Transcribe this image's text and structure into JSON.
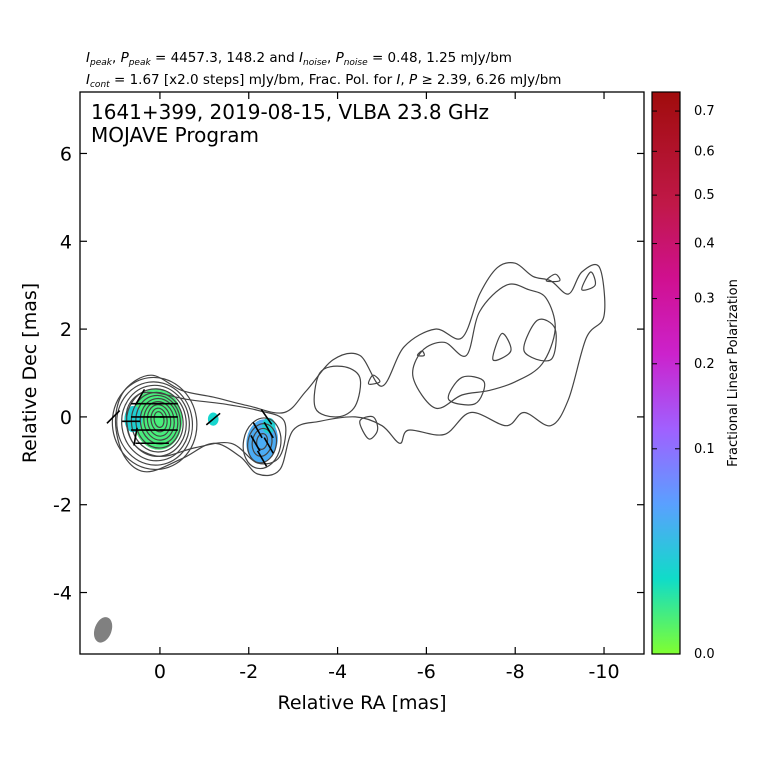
{
  "header": {
    "line1": {
      "i_peak_sym": "I",
      "i_peak_sub": "peak",
      "p_peak_sym": "P",
      "p_peak_sub": "peak",
      "peak_values": " = 4457.3, 148.2 and ",
      "i_noise_sym": "I",
      "i_noise_sub": "noise",
      "p_noise_sym": "P",
      "p_noise_sub": "noise",
      "noise_values": " = 0.48, 1.25 mJy/bm"
    },
    "line2": {
      "i_cont_sym": "I",
      "i_cont_sub": "cont",
      "cont_text": " = 1.67 [x2.0 steps] mJy/bm, Frac. Pol. for ",
      "i_sym": "I",
      "p_sym": "P",
      "threshold_text": " ≥  2.39, 6.26 mJy/bm"
    }
  },
  "chart_data": {
    "type": "contour",
    "title_line1": "1641+399, 2019-08-15, VLBA 23.8 GHz",
    "title_line2": "MOJAVE Program",
    "xlabel": "Relative RA [mas]",
    "ylabel": "Relative Dec [mas]",
    "xlim": [
      1.8,
      -10.9
    ],
    "ylim": [
      -5.4,
      7.4
    ],
    "x_ticks": [
      0,
      -2,
      -4,
      -6,
      -8,
      -10
    ],
    "x_tick_labels": [
      "0",
      "-2",
      "-4",
      "-6",
      "-8",
      "-10"
    ],
    "y_ticks": [
      -4,
      -2,
      0,
      2,
      4,
      6
    ],
    "y_tick_labels": [
      "-4",
      "-2",
      "0",
      "2",
      "4",
      "6"
    ],
    "contour_colour": "#444444",
    "core_contours": [
      {
        "cx": 0.12,
        "cy": -0.15,
        "rx": 0.95,
        "ry": 1.05,
        "angle": 8
      },
      {
        "cx": 0.12,
        "cy": -0.15,
        "rx": 0.85,
        "ry": 0.95,
        "angle": 8
      },
      {
        "cx": 0.1,
        "cy": -0.14,
        "rx": 0.76,
        "ry": 0.86,
        "angle": 8
      },
      {
        "cx": 0.08,
        "cy": -0.13,
        "rx": 0.67,
        "ry": 0.77,
        "angle": 8
      },
      {
        "cx": 0.06,
        "cy": -0.12,
        "rx": 0.58,
        "ry": 0.68,
        "angle": 8
      },
      {
        "cx": 0.04,
        "cy": -0.11,
        "rx": 0.5,
        "ry": 0.6,
        "angle": 8
      },
      {
        "cx": 0.02,
        "cy": -0.1,
        "rx": 0.42,
        "ry": 0.52,
        "angle": 8
      },
      {
        "cx": 0.02,
        "cy": -0.09,
        "rx": 0.34,
        "ry": 0.44,
        "angle": 8
      },
      {
        "cx": 0.02,
        "cy": -0.08,
        "rx": 0.26,
        "ry": 0.36,
        "angle": 8
      },
      {
        "cx": 0.02,
        "cy": -0.07,
        "rx": 0.18,
        "ry": 0.27,
        "angle": 8
      },
      {
        "cx": 0.02,
        "cy": -0.06,
        "rx": 0.11,
        "ry": 0.18,
        "angle": 8
      }
    ],
    "knot_contours": [
      {
        "cx": -2.3,
        "cy": -0.6,
        "rx": 0.42,
        "ry": 0.58,
        "angle": -10
      },
      {
        "cx": -2.3,
        "cy": -0.6,
        "rx": 0.32,
        "ry": 0.45,
        "angle": -10
      },
      {
        "cx": -2.3,
        "cy": -0.58,
        "rx": 0.22,
        "ry": 0.32,
        "angle": -10
      },
      {
        "cx": -2.3,
        "cy": -0.56,
        "rx": 0.12,
        "ry": 0.18,
        "angle": -10
      }
    ],
    "jet_contours": [
      [
        [
          0.2,
          0.95
        ],
        [
          -0.5,
          0.6
        ],
        [
          -1.2,
          0.45
        ],
        [
          -2.0,
          0.25
        ],
        [
          -2.8,
          0.1
        ],
        [
          -3.3,
          0.6
        ],
        [
          -3.9,
          1.3
        ],
        [
          -4.5,
          1.4
        ],
        [
          -5.0,
          0.7
        ],
        [
          -5.5,
          1.6
        ],
        [
          -6.2,
          2.0
        ],
        [
          -6.8,
          1.8
        ],
        [
          -7.2,
          2.8
        ],
        [
          -7.6,
          3.4
        ],
        [
          -8.0,
          3.5
        ],
        [
          -8.4,
          3.2
        ],
        [
          -8.8,
          3.1
        ],
        [
          -9.2,
          2.8
        ],
        [
          -9.5,
          3.3
        ],
        [
          -9.9,
          3.4
        ],
        [
          -10.0,
          2.3
        ],
        [
          -9.6,
          1.8
        ],
        [
          -9.2,
          0.4
        ],
        [
          -8.8,
          -0.2
        ],
        [
          -8.2,
          0.1
        ],
        [
          -7.8,
          -0.2
        ],
        [
          -7.0,
          0.1
        ],
        [
          -6.4,
          -0.4
        ],
        [
          -5.6,
          -0.3
        ],
        [
          -5.4,
          -0.6
        ],
        [
          -5.0,
          -0.2
        ],
        [
          -4.4,
          0.0
        ],
        [
          -3.6,
          -0.1
        ],
        [
          -3.0,
          -0.3
        ],
        [
          -2.7,
          -1.2
        ],
        [
          -2.2,
          -1.3
        ],
        [
          -1.8,
          -0.9
        ],
        [
          -1.2,
          -0.6
        ],
        [
          -0.5,
          -0.95
        ],
        [
          0.3,
          -1.25
        ],
        [
          0.8,
          -0.9
        ],
        [
          1.0,
          -0.1
        ],
        [
          0.8,
          0.6
        ]
      ],
      [
        [
          0.1,
          0.55
        ],
        [
          -0.6,
          0.4
        ],
        [
          -1.4,
          0.3
        ],
        [
          -2.2,
          0.15
        ],
        [
          -2.8,
          -0.1
        ],
        [
          -2.7,
          -0.9
        ],
        [
          -2.2,
          -1.05
        ],
        [
          -1.6,
          -0.6
        ],
        [
          -0.8,
          -0.7
        ],
        [
          0.0,
          -0.9
        ],
        [
          0.6,
          -0.6
        ],
        [
          0.75,
          0.1
        ],
        [
          0.5,
          0.5
        ]
      ],
      [
        [
          -3.5,
          0.2
        ],
        [
          -3.6,
          1.0
        ],
        [
          -4.1,
          1.15
        ],
        [
          -4.5,
          0.9
        ],
        [
          -4.4,
          0.25
        ],
        [
          -4.0,
          0.0
        ]
      ],
      [
        [
          -5.7,
          0.9
        ],
        [
          -5.9,
          1.5
        ],
        [
          -6.4,
          1.7
        ],
        [
          -6.9,
          1.4
        ],
        [
          -7.2,
          2.4
        ],
        [
          -7.8,
          3.0
        ],
        [
          -8.3,
          2.9
        ],
        [
          -8.7,
          2.7
        ],
        [
          -8.9,
          2.0
        ],
        [
          -8.6,
          1.2
        ],
        [
          -8.0,
          0.8
        ],
        [
          -7.4,
          0.6
        ],
        [
          -6.8,
          0.5
        ],
        [
          -6.2,
          0.2
        ]
      ],
      [
        [
          -6.5,
          0.4
        ],
        [
          -6.8,
          0.9
        ],
        [
          -7.3,
          0.8
        ],
        [
          -7.1,
          0.3
        ]
      ],
      [
        [
          -8.2,
          1.5
        ],
        [
          -8.5,
          2.2
        ],
        [
          -8.9,
          2.0
        ],
        [
          -8.8,
          1.3
        ]
      ],
      [
        [
          -7.5,
          1.3
        ],
        [
          -7.7,
          1.9
        ],
        [
          -7.9,
          1.5
        ]
      ],
      [
        [
          -9.5,
          2.9
        ],
        [
          -9.7,
          3.3
        ],
        [
          -9.8,
          3.0
        ]
      ],
      [
        [
          -4.5,
          -0.1
        ],
        [
          -4.7,
          -0.5
        ],
        [
          -4.9,
          -0.3
        ],
        [
          -4.8,
          0.0
        ]
      ],
      [
        [
          -4.7,
          0.75
        ],
        [
          -4.8,
          0.95
        ],
        [
          -4.95,
          0.8
        ]
      ],
      [
        [
          -5.8,
          1.4
        ],
        [
          -5.9,
          1.5
        ],
        [
          -5.95,
          1.4
        ]
      ],
      [
        [
          -8.7,
          3.1
        ],
        [
          -8.9,
          3.25
        ],
        [
          -9.0,
          3.1
        ]
      ]
    ],
    "polarization_patches": [
      {
        "cx": 0.05,
        "cy": -0.05,
        "rx": 0.55,
        "ry": 0.7,
        "angle": 5,
        "frac_pol": 0.05
      },
      {
        "cx": 0.6,
        "cy": -0.05,
        "rx": 0.2,
        "ry": 0.3,
        "angle": 0,
        "frac_pol": 0.12
      },
      {
        "cx": -1.2,
        "cy": -0.05,
        "rx": 0.12,
        "ry": 0.15,
        "angle": 0,
        "frac_pol": 0.11
      },
      {
        "cx": -2.3,
        "cy": -0.55,
        "rx": 0.35,
        "ry": 0.5,
        "angle": -10,
        "frac_pol": 0.18
      },
      {
        "cx": -2.45,
        "cy": -0.2,
        "rx": 0.15,
        "ry": 0.18,
        "angle": 0,
        "frac_pol": 0.12
      }
    ],
    "evpa_ticks": [
      {
        "x": -0.2,
        "y": 0.3,
        "angle": 0
      },
      {
        "x": 0.1,
        "y": 0.3,
        "angle": 0
      },
      {
        "x": 0.45,
        "y": 0.3,
        "angle": 0
      },
      {
        "x": -0.2,
        "y": 0.0,
        "angle": 0
      },
      {
        "x": 0.1,
        "y": 0.0,
        "angle": 0
      },
      {
        "x": 0.45,
        "y": 0.0,
        "angle": 0
      },
      {
        "x": -0.2,
        "y": -0.3,
        "angle": 0
      },
      {
        "x": 0.1,
        "y": -0.3,
        "angle": 0
      },
      {
        "x": 0.45,
        "y": -0.3,
        "angle": 0
      },
      {
        "x": 0.0,
        "y": -0.6,
        "angle": 0
      },
      {
        "x": 0.35,
        "y": -0.6,
        "angle": 0
      },
      {
        "x": 0.65,
        "y": -0.1,
        "angle": 0
      },
      {
        "x": 1.05,
        "y": 0.0,
        "angle": 45
      },
      {
        "x": -1.2,
        "y": -0.05,
        "angle": 40
      },
      {
        "x": -2.2,
        "y": -0.3,
        "angle": -60
      },
      {
        "x": -2.45,
        "y": -0.3,
        "angle": -60
      },
      {
        "x": -2.15,
        "y": -0.6,
        "angle": -60
      },
      {
        "x": -2.45,
        "y": -0.65,
        "angle": -60
      },
      {
        "x": -2.3,
        "y": -0.95,
        "angle": -60
      },
      {
        "x": -2.4,
        "y": 0.0,
        "angle": -55
      },
      {
        "x": 0.45,
        "y": 0.45,
        "angle": 60
      },
      {
        "x": 0.55,
        "y": -0.45,
        "angle": 80
      }
    ],
    "beam": {
      "cx": 1.28,
      "cy": -4.85,
      "rx": 0.19,
      "ry": 0.3,
      "angle": 20,
      "colour": "#808080"
    },
    "colorbar": {
      "label": "Fractional Linear Polarization",
      "range": [
        0.0,
        0.75
      ],
      "ticks": [
        0.0,
        0.1,
        0.2,
        0.3,
        0.4,
        0.5,
        0.6,
        0.7
      ],
      "tick_labels": [
        "0.0",
        "0.1",
        "0.2",
        "0.3",
        "0.4",
        "0.5",
        "0.6",
        "0.7"
      ],
      "colour_stops": [
        {
          "v": 0.0,
          "c": "#80ff30"
        },
        {
          "v": 0.1,
          "c": "#10dcc8"
        },
        {
          "v": 0.2,
          "c": "#5aa0ff"
        },
        {
          "v": 0.3,
          "c": "#a060ff"
        },
        {
          "v": 0.4,
          "c": "#cc22cc"
        },
        {
          "v": 0.5,
          "c": "#d01090"
        },
        {
          "v": 0.6,
          "c": "#c01848"
        },
        {
          "v": 0.75,
          "c": "#a00c0c"
        }
      ]
    }
  }
}
